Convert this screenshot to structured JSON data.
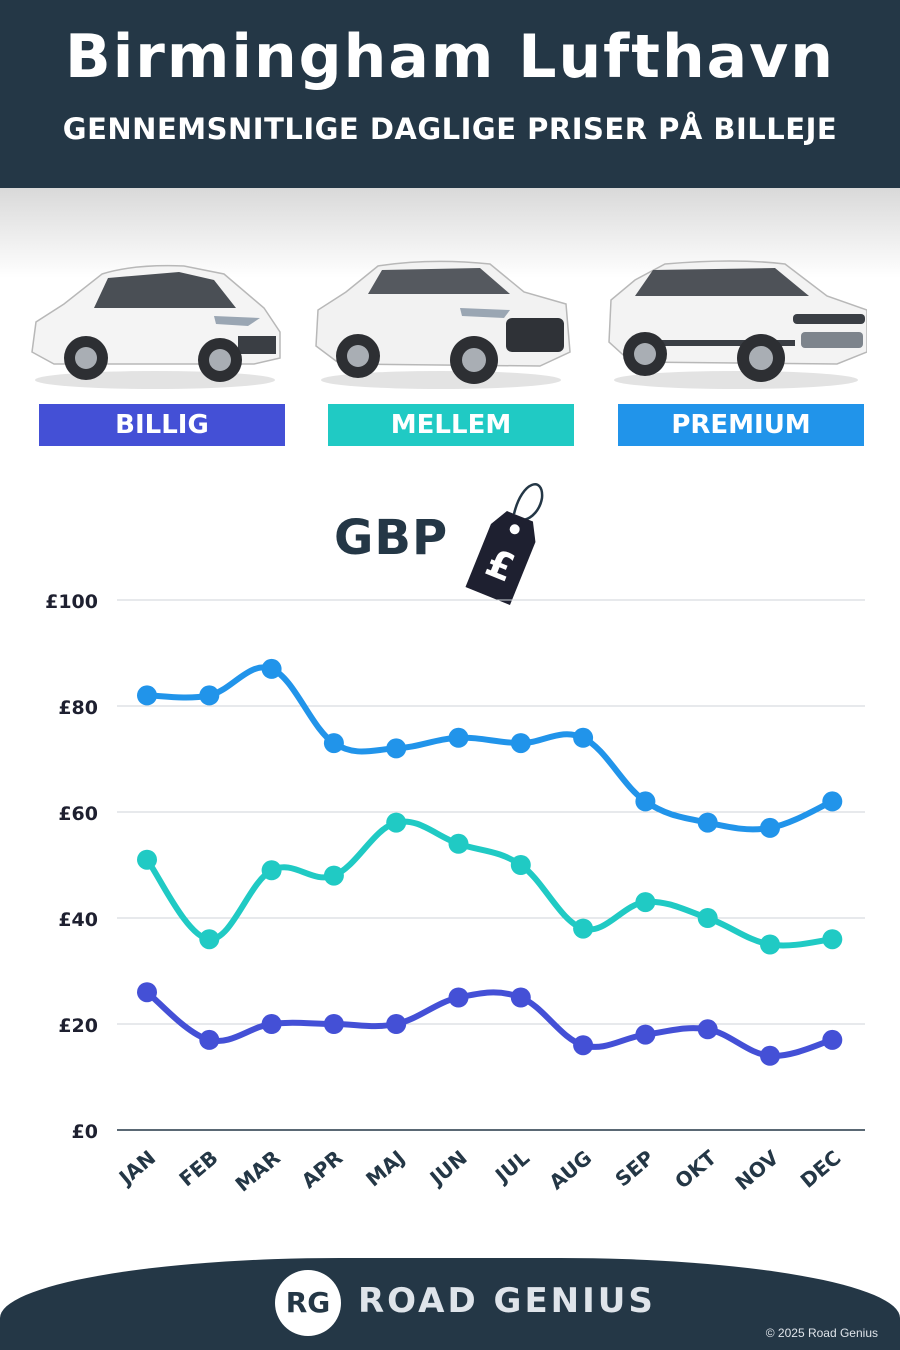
{
  "header": {
    "title": "Birmingham Lufthavn",
    "subtitle": "GENNEMSNITLIGE DAGLIGE PRISER PÅ BILLEJE"
  },
  "categories": [
    {
      "label": "BILLIG",
      "color": "#4450d6",
      "car_icon": "hatchback-car-icon"
    },
    {
      "label": "MELLEM",
      "color": "#20cac4",
      "car_icon": "suv-car-icon"
    },
    {
      "label": "PREMIUM",
      "color": "#2194ea",
      "car_icon": "luxury-suv-car-icon"
    }
  ],
  "currency": {
    "label": "GBP",
    "symbol": "£",
    "icon": "price-tag-icon"
  },
  "chart_data": {
    "type": "line",
    "categories": [
      "JAN",
      "FEB",
      "MAR",
      "APR",
      "MAJ",
      "JUN",
      "JUL",
      "AUG",
      "SEP",
      "OKT",
      "NOV",
      "DEC"
    ],
    "series": [
      {
        "name": "PREMIUM",
        "color": "#2194ea",
        "values": [
          82,
          82,
          87,
          73,
          72,
          74,
          73,
          74,
          62,
          58,
          57,
          62
        ]
      },
      {
        "name": "MELLEM",
        "color": "#20cac4",
        "values": [
          51,
          36,
          49,
          48,
          58,
          54,
          50,
          38,
          43,
          40,
          35,
          36
        ]
      },
      {
        "name": "BILLIG",
        "color": "#4450d6",
        "values": [
          26,
          17,
          20,
          20,
          20,
          25,
          25,
          16,
          18,
          19,
          14,
          17
        ]
      }
    ],
    "yticks": [
      "£0",
      "£20",
      "£40",
      "£60",
      "£80",
      "£100"
    ],
    "ylim": [
      0,
      100
    ],
    "grid": true,
    "legend": "top"
  },
  "footer": {
    "logo_initials": "RG",
    "brand": "ROAD GENIUS",
    "copyright": "© 2025 Road Genius"
  }
}
